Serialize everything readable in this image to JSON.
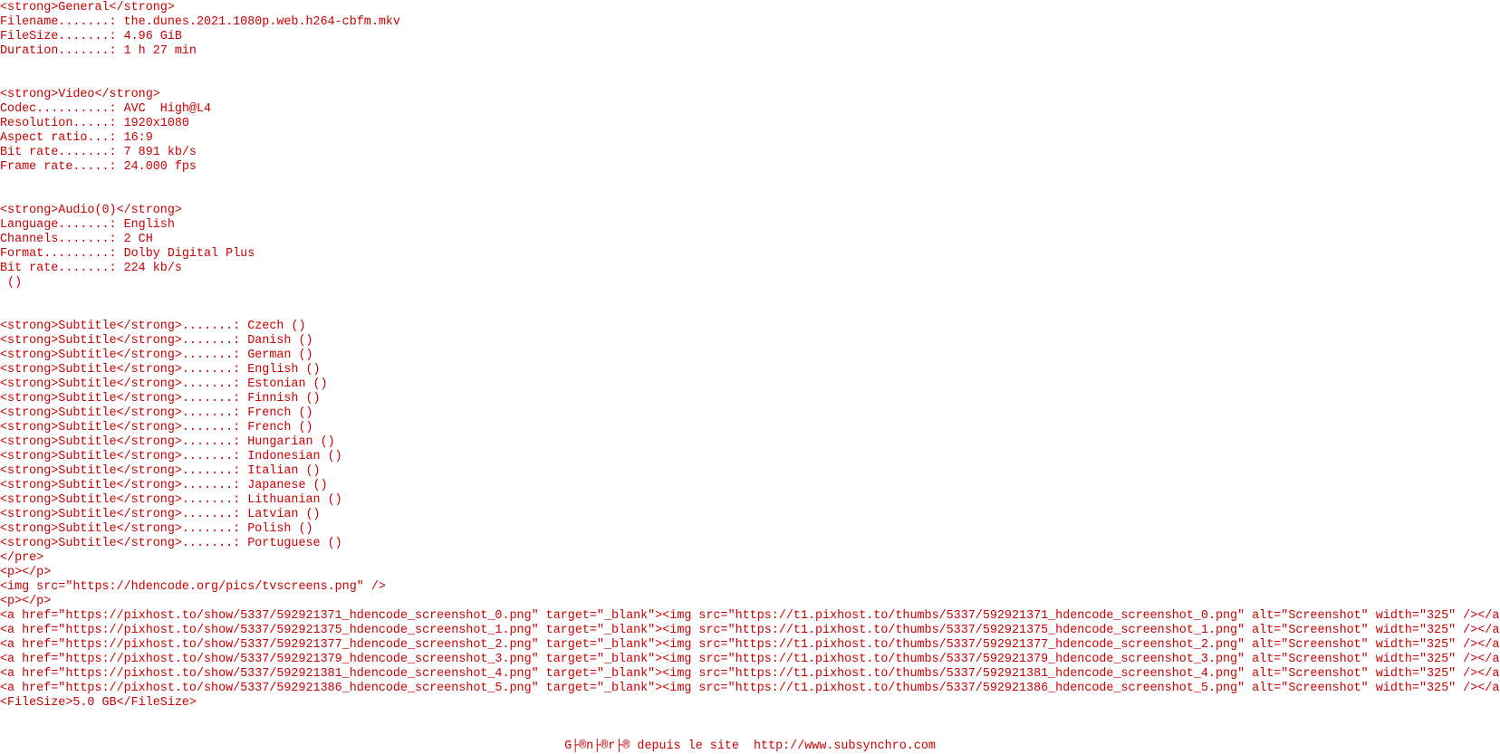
{
  "blocks": [
    [
      "<strong>General</strong>",
      "Filename.......: the.dunes.2021.1080p.web.h264-cbfm.mkv",
      "FileSize.......: 4.96 GiB",
      "Duration.......: 1 h 27 min"
    ],
    [
      "<strong>Video</strong>",
      "Codec..........: AVC  High@L4",
      "Resolution.....: 1920x1080",
      "Aspect ratio...: 16:9",
      "Bit rate.......: 7 891 kb/s",
      "Frame rate.....: 24.000 fps"
    ],
    [
      "<strong>Audio(0)</strong>",
      "Language.......: English",
      "Channels.......: 2 CH",
      "Format.........: Dolby Digital Plus",
      "Bit rate.......: 224 kb/s",
      " ()"
    ],
    [
      "<strong>Subtitle</strong>.......: Czech ()",
      "<strong>Subtitle</strong>.......: Danish ()",
      "<strong>Subtitle</strong>.......: German ()",
      "<strong>Subtitle</strong>.......: English ()",
      "<strong>Subtitle</strong>.......: Estonian ()",
      "<strong>Subtitle</strong>.......: Finnish ()",
      "<strong>Subtitle</strong>.......: French ()",
      "<strong>Subtitle</strong>.......: French ()",
      "<strong>Subtitle</strong>.......: Hungarian ()",
      "<strong>Subtitle</strong>.......: Indonesian ()",
      "<strong>Subtitle</strong>.......: Italian ()",
      "<strong>Subtitle</strong>.......: Japanese ()",
      "<strong>Subtitle</strong>.......: Lithuanian ()",
      "<strong>Subtitle</strong>.......: Latvian ()",
      "<strong>Subtitle</strong>.......: Polish ()",
      "<strong>Subtitle</strong>.......: Portuguese ()",
      "</pre>",
      "<p></p>",
      "<img src=\"https://hdencode.org/pics/tvscreens.png\" />",
      "<p></p>",
      "<a href=\"https://pixhost.to/show/5337/592921371_hdencode_screenshot_0.png\" target=\"_blank\"><img src=\"https://t1.pixhost.to/thumbs/5337/592921371_hdencode_screenshot_0.png\" alt=\"Screenshot\" width=\"325\" /></a>",
      "<a href=\"https://pixhost.to/show/5337/592921375_hdencode_screenshot_1.png\" target=\"_blank\"><img src=\"https://t1.pixhost.to/thumbs/5337/592921375_hdencode_screenshot_1.png\" alt=\"Screenshot\" width=\"325\" /></a>",
      "<a href=\"https://pixhost.to/show/5337/592921377_hdencode_screenshot_2.png\" target=\"_blank\"><img src=\"https://t1.pixhost.to/thumbs/5337/592921377_hdencode_screenshot_2.png\" alt=\"Screenshot\" width=\"325\" /></a>",
      "<a href=\"https://pixhost.to/show/5337/592921379_hdencode_screenshot_3.png\" target=\"_blank\"><img src=\"https://t1.pixhost.to/thumbs/5337/592921379_hdencode_screenshot_3.png\" alt=\"Screenshot\" width=\"325\" /></a>",
      "<a href=\"https://pixhost.to/show/5337/592921381_hdencode_screenshot_4.png\" target=\"_blank\"><img src=\"https://t1.pixhost.to/thumbs/5337/592921381_hdencode_screenshot_4.png\" alt=\"Screenshot\" width=\"325\" /></a>",
      "<a href=\"https://pixhost.to/show/5337/592921386_hdencode_screenshot_5.png\" target=\"_blank\"><img src=\"https://t1.pixhost.to/thumbs/5337/592921386_hdencode_screenshot_5.png\" alt=\"Screenshot\" width=\"325\" /></a>",
      "<FileSize>5.0 GB</FileSize>"
    ]
  ],
  "footer": "G├®n├®r├® depuis le site  http://www.subsynchro.com"
}
